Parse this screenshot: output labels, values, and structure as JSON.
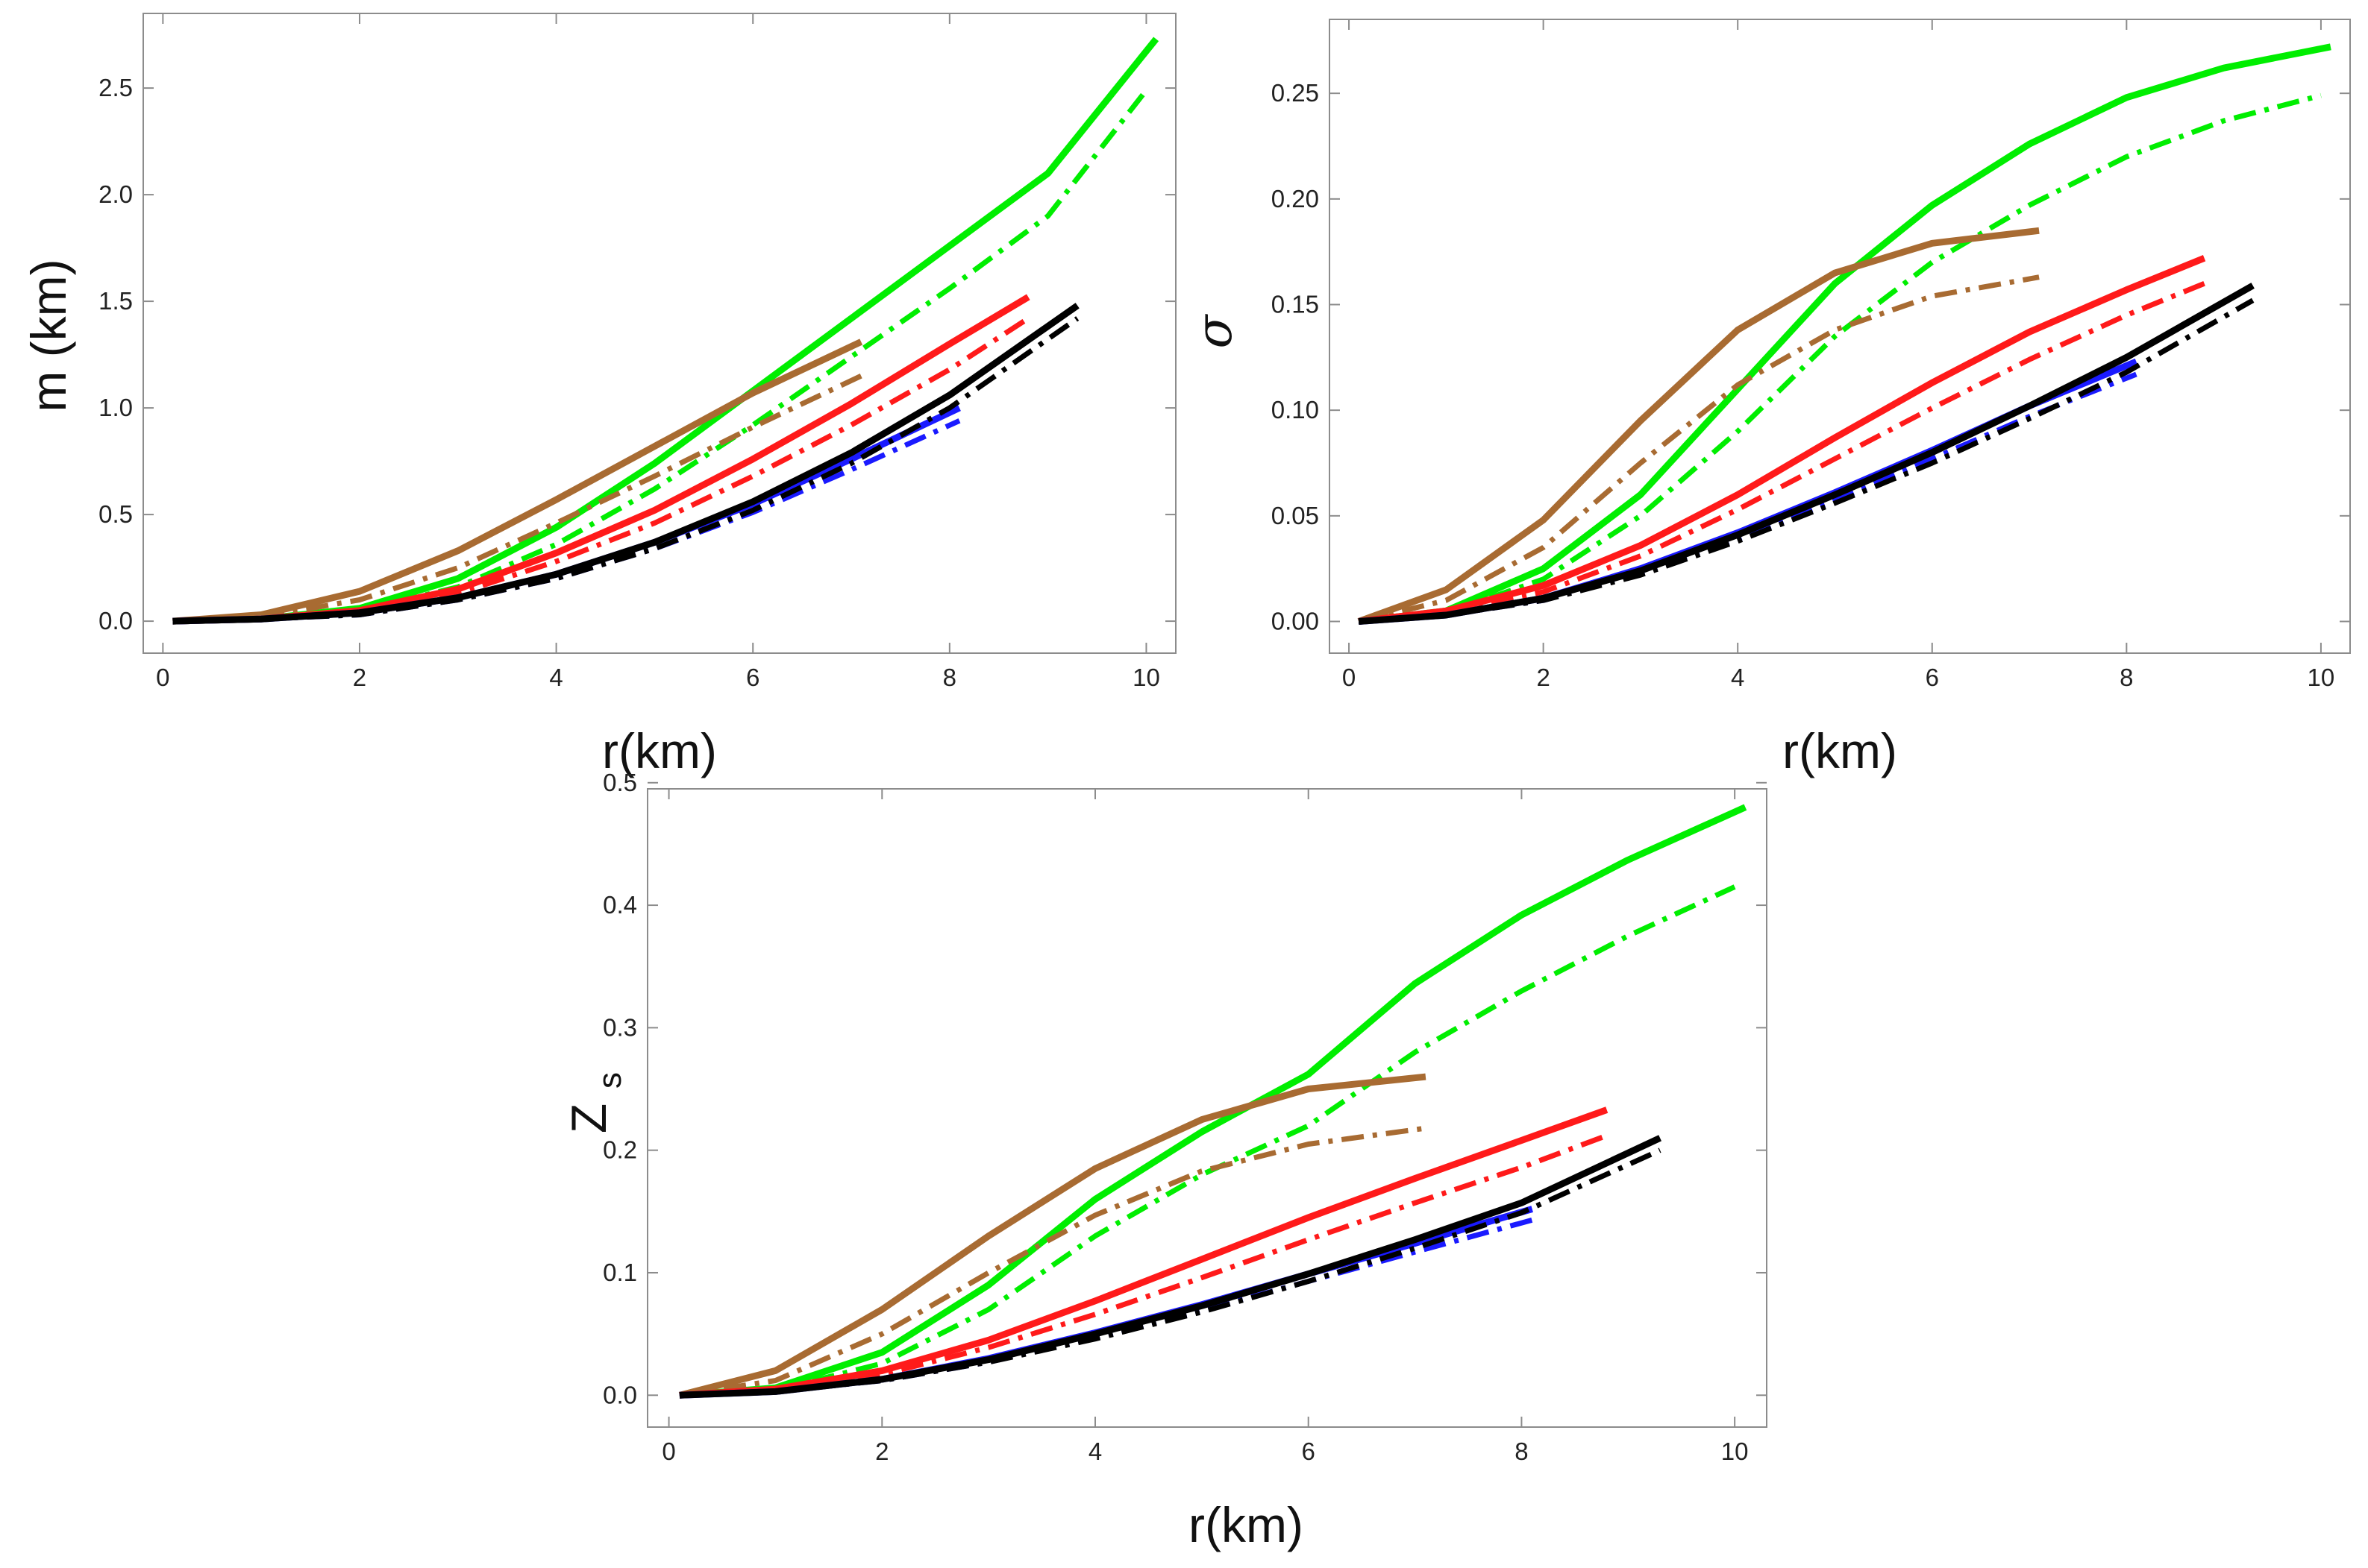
{
  "chart_data": [
    {
      "type": "line",
      "panel": "top-left",
      "xlabel": "r(km)",
      "ylabel": "m (km)",
      "xlim": [
        -0.2,
        10.3
      ],
      "ylim": [
        -0.15,
        2.85
      ],
      "x_ticks": [
        "0",
        "2",
        "4",
        "6",
        "8",
        "10"
      ],
      "y_ticks": [
        "0.0",
        "0.5",
        "1.0",
        "1.5",
        "2.0",
        "2.5"
      ],
      "x_tick_values": [
        0,
        2,
        4,
        6,
        8,
        10
      ],
      "y_tick_values": [
        0,
        0.5,
        1.0,
        1.5,
        2.0,
        2.5
      ],
      "series": [
        {
          "name": "green solid",
          "color": "#00ee00",
          "style": "solid",
          "x": [
            0.1,
            1,
            2,
            3,
            4,
            5,
            6,
            7,
            8,
            9,
            10.1
          ],
          "y": [
            0,
            0.01,
            0.06,
            0.2,
            0.44,
            0.74,
            1.08,
            1.42,
            1.76,
            2.1,
            2.73
          ]
        },
        {
          "name": "green dash-dot",
          "color": "#00ee00",
          "style": "dashdot",
          "x": [
            0.1,
            1,
            2,
            3,
            4,
            5,
            6,
            7,
            8,
            9,
            10
          ],
          "y": [
            0,
            0.01,
            0.05,
            0.16,
            0.36,
            0.62,
            0.92,
            1.24,
            1.56,
            1.9,
            2.49
          ]
        },
        {
          "name": "brown solid",
          "color": "#a86b32",
          "style": "solid",
          "x": [
            0.1,
            1,
            2,
            3,
            4,
            5,
            6,
            7.1
          ],
          "y": [
            0,
            0.03,
            0.14,
            0.33,
            0.57,
            0.82,
            1.07,
            1.31
          ]
        },
        {
          "name": "brown dash-dot",
          "color": "#a86b32",
          "style": "dashdot",
          "x": [
            0.1,
            1,
            2,
            3,
            4,
            5,
            6,
            7.1
          ],
          "y": [
            0,
            0.02,
            0.1,
            0.25,
            0.46,
            0.68,
            0.91,
            1.15
          ]
        },
        {
          "name": "red solid",
          "color": "#ff1a1a",
          "style": "solid",
          "x": [
            0.1,
            1,
            2,
            3,
            4,
            5,
            6,
            7,
            8,
            8.8
          ],
          "y": [
            0,
            0.01,
            0.05,
            0.15,
            0.32,
            0.52,
            0.76,
            1.02,
            1.3,
            1.52
          ]
        },
        {
          "name": "red dash-dot",
          "color": "#ff1a1a",
          "style": "dashdot",
          "x": [
            0.1,
            1,
            2,
            3,
            4,
            5,
            6,
            7,
            8,
            8.8
          ],
          "y": [
            0,
            0.01,
            0.04,
            0.13,
            0.28,
            0.46,
            0.68,
            0.92,
            1.18,
            1.42
          ]
        },
        {
          "name": "blue solid",
          "color": "#1a1aff",
          "style": "solid",
          "x": [
            0.1,
            1,
            2,
            3,
            4,
            5,
            6,
            7,
            8.1
          ],
          "y": [
            0,
            0.01,
            0.04,
            0.11,
            0.22,
            0.37,
            0.55,
            0.76,
            1.0
          ]
        },
        {
          "name": "blue dash-dot",
          "color": "#1a1aff",
          "style": "dashdot",
          "x": [
            0.1,
            1,
            2,
            3,
            4,
            5,
            6,
            7,
            8.1
          ],
          "y": [
            0,
            0.01,
            0.03,
            0.1,
            0.2,
            0.34,
            0.51,
            0.71,
            0.94
          ]
        },
        {
          "name": "black solid",
          "color": "#000000",
          "style": "solid",
          "x": [
            0.1,
            1,
            2,
            3,
            4,
            5,
            6,
            7,
            8,
            9.3
          ],
          "y": [
            0,
            0.01,
            0.04,
            0.11,
            0.22,
            0.37,
            0.56,
            0.79,
            1.06,
            1.48
          ]
        },
        {
          "name": "black dash-dot",
          "color": "#000000",
          "style": "dashdot",
          "x": [
            0.1,
            1,
            2,
            3,
            4,
            5,
            6,
            7,
            8,
            9.3
          ],
          "y": [
            0,
            0.01,
            0.03,
            0.1,
            0.2,
            0.34,
            0.52,
            0.74,
            1.0,
            1.42
          ]
        }
      ]
    },
    {
      "type": "line",
      "panel": "top-right",
      "xlabel": "r(km)",
      "ylabel": "σ",
      "xlim": [
        -0.2,
        10.3
      ],
      "ylim": [
        -0.015,
        0.285
      ],
      "x_ticks": [
        "0",
        "2",
        "4",
        "6",
        "8",
        "10"
      ],
      "y_ticks": [
        "0.00",
        "0.05",
        "0.10",
        "0.15",
        "0.20",
        "0.25"
      ],
      "x_tick_values": [
        0,
        2,
        4,
        6,
        8,
        10
      ],
      "y_tick_values": [
        0,
        0.05,
        0.1,
        0.15,
        0.2,
        0.25
      ],
      "series": [
        {
          "name": "green solid",
          "color": "#00ee00",
          "style": "solid",
          "x": [
            0.1,
            1,
            2,
            3,
            4,
            5,
            6,
            7,
            8,
            9,
            10.1
          ],
          "y": [
            0,
            0.005,
            0.025,
            0.06,
            0.11,
            0.16,
            0.197,
            0.226,
            0.248,
            0.262,
            0.272
          ]
        },
        {
          "name": "green dash-dot",
          "color": "#00ee00",
          "style": "dashdot",
          "x": [
            0.1,
            1,
            2,
            3,
            4,
            5,
            6,
            7,
            8,
            9,
            10
          ],
          "y": [
            0,
            0.004,
            0.02,
            0.05,
            0.09,
            0.135,
            0.17,
            0.197,
            0.22,
            0.237,
            0.249
          ]
        },
        {
          "name": "brown solid",
          "color": "#a86b32",
          "style": "solid",
          "x": [
            0.1,
            1,
            2,
            3,
            4,
            5,
            6,
            7.1
          ],
          "y": [
            0,
            0.015,
            0.048,
            0.095,
            0.138,
            0.165,
            0.179,
            0.185
          ]
        },
        {
          "name": "brown dash-dot",
          "color": "#a86b32",
          "style": "dashdot",
          "x": [
            0.1,
            1,
            2,
            3,
            4,
            5,
            6,
            7.1
          ],
          "y": [
            0,
            0.01,
            0.035,
            0.075,
            0.112,
            0.138,
            0.154,
            0.163
          ]
        },
        {
          "name": "red solid",
          "color": "#ff1a1a",
          "style": "solid",
          "x": [
            0.1,
            1,
            2,
            3,
            4,
            5,
            6,
            7,
            8,
            8.8
          ],
          "y": [
            0,
            0.005,
            0.017,
            0.036,
            0.06,
            0.087,
            0.113,
            0.137,
            0.157,
            0.172
          ]
        },
        {
          "name": "red dash-dot",
          "color": "#ff1a1a",
          "style": "dashdot",
          "x": [
            0.1,
            1,
            2,
            3,
            4,
            5,
            6,
            7,
            8,
            8.8
          ],
          "y": [
            0,
            0.004,
            0.014,
            0.031,
            0.053,
            0.077,
            0.101,
            0.124,
            0.145,
            0.16
          ]
        },
        {
          "name": "blue solid",
          "color": "#1a1aff",
          "style": "solid",
          "x": [
            0.1,
            1,
            2,
            3,
            4,
            5,
            6,
            7,
            8.1
          ],
          "y": [
            0,
            0.003,
            0.011,
            0.025,
            0.042,
            0.061,
            0.081,
            0.102,
            0.123
          ]
        },
        {
          "name": "blue dash-dot",
          "color": "#1a1aff",
          "style": "dashdot",
          "x": [
            0.1,
            1,
            2,
            3,
            4,
            5,
            6,
            7,
            8.1
          ],
          "y": [
            0,
            0.003,
            0.01,
            0.023,
            0.039,
            0.057,
            0.077,
            0.097,
            0.117
          ]
        },
        {
          "name": "black solid",
          "color": "#000000",
          "style": "solid",
          "x": [
            0.1,
            1,
            2,
            3,
            4,
            5,
            6,
            7,
            8,
            9.3
          ],
          "y": [
            0,
            0.003,
            0.011,
            0.024,
            0.041,
            0.06,
            0.08,
            0.102,
            0.125,
            0.159
          ]
        },
        {
          "name": "black dash-dot",
          "color": "#000000",
          "style": "dashdot",
          "x": [
            0.1,
            1,
            2,
            3,
            4,
            5,
            6,
            7,
            8,
            9.3
          ],
          "y": [
            0,
            0.003,
            0.01,
            0.022,
            0.038,
            0.056,
            0.075,
            0.096,
            0.118,
            0.152
          ]
        }
      ]
    },
    {
      "type": "line",
      "panel": "bottom",
      "xlabel": "r(km)",
      "ylabel": "Z",
      "ylabel_subscript": "s",
      "xlim": [
        -0.2,
        10.3
      ],
      "ylim": [
        -0.026,
        0.495
      ],
      "x_ticks": [
        "0",
        "2",
        "4",
        "6",
        "8",
        "10"
      ],
      "y_ticks": [
        "0.0",
        "0.1",
        "0.2",
        "0.3",
        "0.4",
        "0.5"
      ],
      "x_tick_values": [
        0,
        2,
        4,
        6,
        8,
        10
      ],
      "y_tick_values": [
        0,
        0.1,
        0.2,
        0.3,
        0.4,
        0.5
      ],
      "series": [
        {
          "name": "green solid",
          "color": "#00ee00",
          "style": "solid",
          "x": [
            0.1,
            1,
            2,
            3,
            4,
            5,
            6,
            7,
            8,
            9,
            10.1
          ],
          "y": [
            0,
            0.006,
            0.035,
            0.09,
            0.16,
            0.215,
            0.262,
            0.336,
            0.392,
            0.437,
            0.48
          ]
        },
        {
          "name": "green dash-dot",
          "color": "#00ee00",
          "style": "dashdot",
          "x": [
            0.1,
            1,
            2,
            3,
            4,
            5,
            6,
            7,
            8,
            9,
            10
          ],
          "y": [
            0,
            0.004,
            0.026,
            0.07,
            0.13,
            0.18,
            0.22,
            0.28,
            0.33,
            0.375,
            0.415
          ]
        },
        {
          "name": "brown solid",
          "color": "#a86b32",
          "style": "solid",
          "x": [
            0.1,
            1,
            2,
            3,
            4,
            5,
            6,
            7.1
          ],
          "y": [
            0,
            0.02,
            0.07,
            0.13,
            0.185,
            0.225,
            0.25,
            0.26
          ]
        },
        {
          "name": "brown dash-dot",
          "color": "#a86b32",
          "style": "dashdot",
          "x": [
            0.1,
            1,
            2,
            3,
            4,
            5,
            6,
            7.1
          ],
          "y": [
            0,
            0.012,
            0.05,
            0.1,
            0.147,
            0.183,
            0.205,
            0.218
          ]
        },
        {
          "name": "red solid",
          "color": "#ff1a1a",
          "style": "solid",
          "x": [
            0.1,
            1,
            2,
            3,
            4,
            5,
            6,
            7,
            8,
            8.8
          ],
          "y": [
            0,
            0.005,
            0.02,
            0.045,
            0.077,
            0.111,
            0.145,
            0.177,
            0.208,
            0.233
          ]
        },
        {
          "name": "red dash-dot",
          "color": "#ff1a1a",
          "style": "dashdot",
          "x": [
            0.1,
            1,
            2,
            3,
            4,
            5,
            6,
            7,
            8,
            8.8
          ],
          "y": [
            0,
            0.004,
            0.017,
            0.039,
            0.066,
            0.096,
            0.127,
            0.157,
            0.186,
            0.212
          ]
        },
        {
          "name": "blue solid",
          "color": "#1a1aff",
          "style": "solid",
          "x": [
            0.1,
            1,
            2,
            3,
            4,
            5,
            6,
            7,
            8.1
          ],
          "y": [
            0,
            0.003,
            0.013,
            0.03,
            0.051,
            0.074,
            0.099,
            0.124,
            0.152
          ]
        },
        {
          "name": "blue dash-dot",
          "color": "#1a1aff",
          "style": "dashdot",
          "x": [
            0.1,
            1,
            2,
            3,
            4,
            5,
            6,
            7,
            8.1
          ],
          "y": [
            0,
            0.003,
            0.012,
            0.027,
            0.047,
            0.069,
            0.093,
            0.117,
            0.143
          ]
        },
        {
          "name": "black solid",
          "color": "#000000",
          "style": "solid",
          "x": [
            0.1,
            1,
            2,
            3,
            4,
            5,
            6,
            7,
            8,
            9.3
          ],
          "y": [
            0,
            0.003,
            0.013,
            0.029,
            0.05,
            0.073,
            0.099,
            0.127,
            0.157,
            0.21
          ]
        },
        {
          "name": "black dash-dot",
          "color": "#000000",
          "style": "dashdot",
          "x": [
            0.1,
            1,
            2,
            3,
            4,
            5,
            6,
            7,
            8,
            9.3
          ],
          "y": [
            0,
            0.003,
            0.012,
            0.027,
            0.046,
            0.068,
            0.093,
            0.12,
            0.149,
            0.2
          ]
        }
      ]
    }
  ]
}
